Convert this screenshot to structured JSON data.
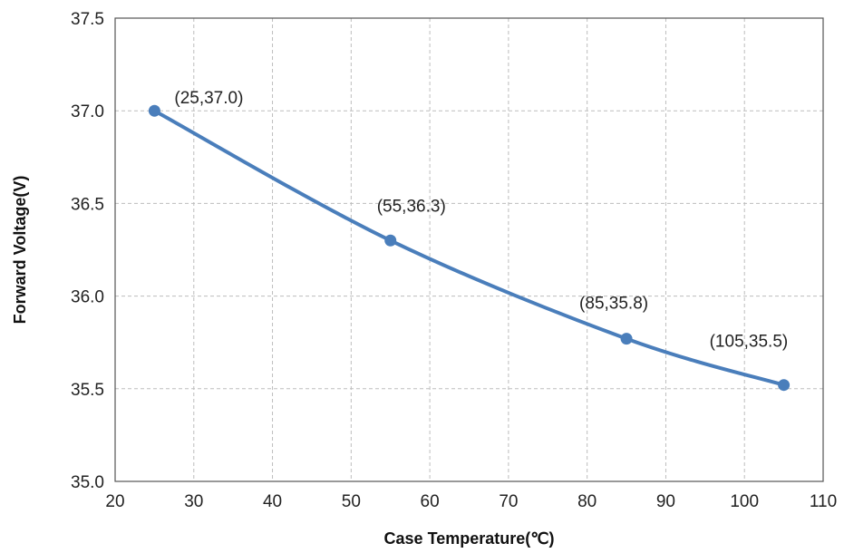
{
  "chart_data": {
    "type": "line",
    "title": "",
    "xlabel": "Case Temperature(℃)",
    "ylabel": "Forward Voltage(V)",
    "xlim": [
      20,
      110
    ],
    "ylim": [
      35.0,
      37.5
    ],
    "xticks": [
      20,
      30,
      40,
      50,
      60,
      70,
      80,
      90,
      100,
      110
    ],
    "yticks": [
      "35.0",
      "35.5",
      "36.0",
      "36.5",
      "37.0",
      "37.5"
    ],
    "grid": true,
    "legend": "none",
    "series": [
      {
        "color": "#4a7ebb",
        "smooth": true,
        "x": [
          25,
          55,
          85,
          105
        ],
        "y": [
          37.0,
          36.3,
          35.77,
          35.52
        ],
        "labels": [
          "(25,37.0)",
          "(55,36.3)",
          "(85,35.8)",
          "(105,35.5)"
        ]
      }
    ]
  }
}
